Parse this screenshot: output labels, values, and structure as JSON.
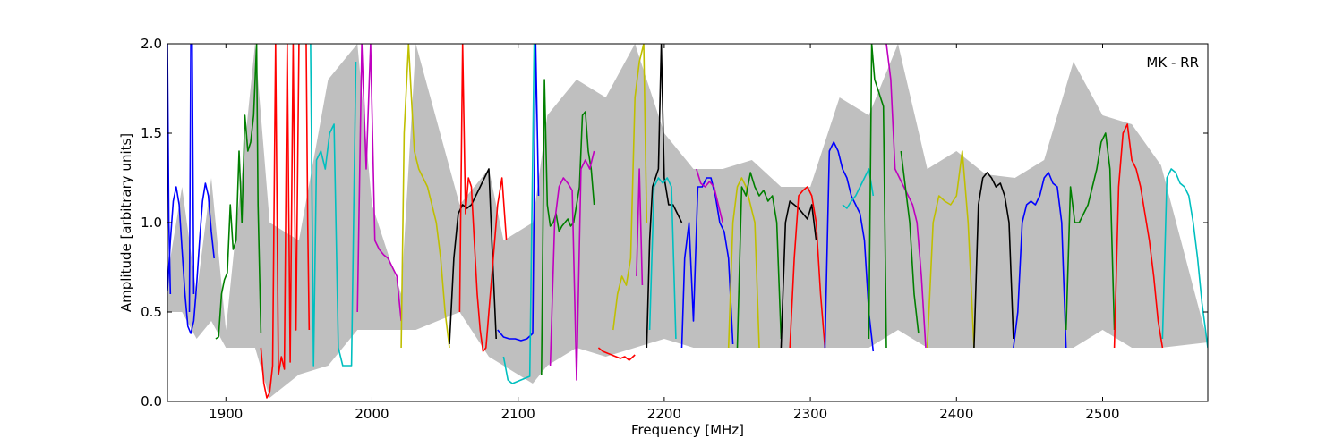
{
  "chart_data": {
    "type": "line",
    "xlabel": "Frequency [MHz]",
    "ylabel": "Amplitude [arbitrary units]",
    "xlim": [
      1860,
      2572
    ],
    "ylim": [
      0.0,
      2.0
    ],
    "x_ticks": [
      1900,
      2000,
      2100,
      2200,
      2300,
      2400,
      2500
    ],
    "x_tick_labels": [
      "1900",
      "2000",
      "2100",
      "2200",
      "2300",
      "2400",
      "2500"
    ],
    "y_ticks": [
      0.0,
      0.5,
      1.0,
      1.5,
      2.0
    ],
    "y_tick_labels": [
      "0.0",
      "0.5",
      "1.0",
      "1.5",
      "2.0"
    ],
    "annotation": "MK - RR",
    "grid": false,
    "colors": {
      "background_band": "#bfbfbf",
      "b": "#0000ff",
      "g": "#007f00",
      "r": "#ff0000",
      "c": "#00bfbf",
      "m": "#bf00bf",
      "y": "#bfbf00",
      "k": "#000000"
    },
    "background_band": {
      "x": [
        1860,
        1870,
        1880,
        1890,
        1900,
        1920,
        1930,
        1950,
        1970,
        1990,
        2000,
        2020,
        2030,
        2060,
        2080,
        2090,
        2110,
        2120,
        2140,
        2160,
        2180,
        2200,
        2220,
        2240,
        2260,
        2280,
        2300,
        2320,
        2340,
        2360,
        2380,
        2400,
        2420,
        2440,
        2460,
        2480,
        2500,
        2520,
        2540,
        2572
      ],
      "upper": [
        0.7,
        1.2,
        0.6,
        1.25,
        0.4,
        2.0,
        1.0,
        0.9,
        1.8,
        2.0,
        1.1,
        0.6,
        2.0,
        1.1,
        1.3,
        0.9,
        1.0,
        1.6,
        1.8,
        1.7,
        2.0,
        1.5,
        1.3,
        1.3,
        1.35,
        1.2,
        1.2,
        1.7,
        1.6,
        2.0,
        1.3,
        1.4,
        1.27,
        1.25,
        1.35,
        1.9,
        1.6,
        1.55,
        1.32,
        0.33
      ],
      "lower": [
        0.5,
        0.5,
        0.35,
        0.45,
        0.3,
        0.3,
        0.02,
        0.15,
        0.2,
        0.4,
        0.4,
        0.4,
        0.4,
        0.5,
        0.25,
        0.2,
        0.1,
        0.2,
        0.3,
        0.25,
        0.3,
        0.35,
        0.3,
        0.3,
        0.3,
        0.3,
        0.3,
        0.3,
        0.3,
        0.4,
        0.3,
        0.3,
        0.3,
        0.3,
        0.3,
        0.3,
        0.4,
        0.3,
        0.3,
        0.33
      ]
    },
    "series": [
      {
        "color": "b",
        "x": [
          1860,
          1862,
          1864,
          1866,
          1868,
          1870,
          1872,
          1874,
          1876,
          1878,
          1880,
          1882,
          1884,
          1886,
          1888,
          1890,
          1892
        ],
        "y": [
          0.62,
          0.9,
          1.12,
          1.2,
          1.1,
          0.85,
          0.6,
          0.42,
          0.38,
          0.45,
          0.65,
          0.9,
          1.12,
          1.22,
          1.15,
          0.95,
          0.8
        ]
      },
      {
        "color": "b",
        "x": [
          1860,
          1861,
          1862
        ],
        "y": [
          2.0,
          1.0,
          0.6
        ]
      },
      {
        "color": "b",
        "x": [
          1875,
          1876,
          1877,
          1878
        ],
        "y": [
          0.5,
          2.0,
          2.0,
          0.6
        ]
      },
      {
        "color": "g",
        "x": [
          1893,
          1895,
          1897,
          1899,
          1901,
          1903,
          1905,
          1907,
          1909,
          1911,
          1913,
          1915,
          1917,
          1919,
          1921,
          1922,
          1924
        ],
        "y": [
          0.35,
          0.36,
          0.6,
          0.68,
          0.72,
          1.1,
          0.85,
          0.9,
          1.4,
          1.0,
          1.6,
          1.4,
          1.45,
          1.6,
          2.0,
          1.1,
          0.38
        ]
      },
      {
        "color": "r",
        "x": [
          1924,
          1926,
          1928,
          1930,
          1932,
          1934,
          1936,
          1938,
          1940,
          1942,
          1944,
          1946,
          1948,
          1950
        ],
        "y": [
          0.3,
          0.1,
          0.02,
          0.05,
          0.2,
          2.0,
          0.15,
          0.25,
          0.18,
          2.0,
          0.22,
          2.0,
          0.4,
          2.0
        ]
      },
      {
        "color": "r",
        "x": [
          1955,
          1956,
          1957
        ],
        "y": [
          2.0,
          1.0,
          0.4
        ]
      },
      {
        "color": "c",
        "x": [
          1958,
          1960,
          1962,
          1965,
          1968,
          1971,
          1974,
          1977,
          1980,
          1983,
          1986,
          1989
        ],
        "y": [
          2.0,
          0.2,
          1.35,
          1.4,
          1.3,
          1.5,
          1.55,
          0.3,
          0.2,
          0.2,
          0.2,
          1.9
        ]
      },
      {
        "color": "m",
        "x": [
          1990,
          1993,
          1996,
          1999,
          2002,
          2005,
          2008,
          2011,
          2014,
          2017,
          2020
        ],
        "y": [
          0.5,
          2.0,
          1.3,
          2.0,
          0.9,
          0.85,
          0.82,
          0.8,
          0.75,
          0.7,
          0.45
        ]
      },
      {
        "color": "y",
        "x": [
          2020,
          2022,
          2025,
          2027,
          2029,
          2032,
          2035,
          2038,
          2041,
          2044,
          2047,
          2050,
          2053
        ],
        "y": [
          0.3,
          1.5,
          2.0,
          1.7,
          1.4,
          1.3,
          1.25,
          1.2,
          1.1,
          1.0,
          0.8,
          0.5,
          0.3
        ]
      },
      {
        "color": "k",
        "x": [
          2053,
          2056,
          2059,
          2062,
          2065,
          2068,
          2071,
          2074,
          2077,
          2080,
          2082,
          2085
        ],
        "y": [
          0.32,
          0.8,
          1.05,
          1.1,
          1.08,
          1.1,
          1.15,
          1.2,
          1.25,
          1.3,
          0.9,
          0.35
        ]
      },
      {
        "color": "r",
        "x": [
          2060,
          2062,
          2064,
          2066,
          2068,
          2070,
          2072,
          2074,
          2076,
          2078,
          2080,
          2083,
          2086,
          2089,
          2092
        ],
        "y": [
          0.5,
          2.0,
          1.05,
          1.25,
          1.2,
          0.9,
          0.6,
          0.4,
          0.28,
          0.3,
          0.5,
          0.8,
          1.1,
          1.25,
          0.9
        ]
      },
      {
        "color": "b",
        "x": [
          2086,
          2090,
          2094,
          2098,
          2102,
          2106,
          2110,
          2112,
          2114
        ],
        "y": [
          0.4,
          0.36,
          0.35,
          0.35,
          0.34,
          0.35,
          0.38,
          2.0,
          1.15
        ]
      },
      {
        "color": "c",
        "x": [
          2090,
          2093,
          2096,
          2099,
          2102,
          2105,
          2108,
          2111
        ],
        "y": [
          0.25,
          0.12,
          0.1,
          0.11,
          0.12,
          0.13,
          0.14,
          2.0
        ]
      },
      {
        "color": "g",
        "x": [
          2116,
          2118,
          2120,
          2122,
          2124,
          2126,
          2128,
          2130,
          2132,
          2134,
          2136,
          2138,
          2140,
          2142,
          2144,
          2146,
          2148,
          2150,
          2152
        ],
        "y": [
          0.15,
          1.8,
          1.1,
          0.98,
          1.0,
          1.05,
          0.95,
          0.98,
          1.0,
          1.02,
          0.98,
          1.0,
          1.1,
          1.2,
          1.6,
          1.62,
          1.4,
          1.3,
          1.1
        ]
      },
      {
        "color": "m",
        "x": [
          2122,
          2125,
          2128,
          2131,
          2134,
          2137,
          2140,
          2143,
          2146,
          2149,
          2152
        ],
        "y": [
          0.2,
          1.0,
          1.2,
          1.25,
          1.22,
          1.18,
          0.12,
          1.3,
          1.35,
          1.3,
          1.4
        ]
      },
      {
        "color": "r",
        "x": [
          2155,
          2158,
          2161,
          2164,
          2167,
          2170,
          2173,
          2176,
          2180
        ],
        "y": [
          0.3,
          0.28,
          0.27,
          0.26,
          0.25,
          0.24,
          0.25,
          0.23,
          0.26
        ]
      },
      {
        "color": "y",
        "x": [
          2165,
          2168,
          2171,
          2174,
          2177,
          2180,
          2183,
          2186,
          2188
        ],
        "y": [
          0.4,
          0.6,
          0.7,
          0.65,
          0.8,
          1.7,
          1.9,
          2.0,
          1.0
        ]
      },
      {
        "color": "m",
        "x": [
          2181,
          2183,
          2185
        ],
        "y": [
          0.7,
          1.3,
          0.65
        ]
      },
      {
        "color": "k",
        "x": [
          2188,
          2190,
          2192,
          2194,
          2196,
          2198,
          2200,
          2203,
          2206,
          2209,
          2212
        ],
        "y": [
          0.3,
          0.9,
          1.2,
          1.25,
          1.3,
          2.0,
          1.25,
          1.1,
          1.1,
          1.05,
          1.0
        ]
      },
      {
        "color": "c",
        "x": [
          2190,
          2193,
          2196,
          2199,
          2202,
          2205,
          2208
        ],
        "y": [
          0.4,
          1.2,
          1.25,
          1.22,
          1.25,
          1.2,
          0.35
        ]
      },
      {
        "color": "b",
        "x": [
          2212,
          2214,
          2217,
          2220,
          2223,
          2226,
          2229,
          2232,
          2235,
          2238,
          2241,
          2244,
          2247
        ],
        "y": [
          0.3,
          0.8,
          1.0,
          0.45,
          1.2,
          1.2,
          1.25,
          1.25,
          1.15,
          1.0,
          0.95,
          0.8,
          0.32
        ]
      },
      {
        "color": "m",
        "x": [
          2222,
          2225,
          2228,
          2231,
          2234,
          2237,
          2240
        ],
        "y": [
          1.3,
          1.22,
          1.2,
          1.23,
          1.2,
          1.1,
          1.0
        ]
      },
      {
        "color": "y",
        "x": [
          2244,
          2247,
          2250,
          2253,
          2256,
          2259,
          2262,
          2265
        ],
        "y": [
          0.3,
          1.0,
          1.2,
          1.25,
          1.2,
          1.1,
          1.0,
          0.3
        ]
      },
      {
        "color": "g",
        "x": [
          2250,
          2253,
          2256,
          2259,
          2262,
          2265,
          2268,
          2271,
          2274,
          2277,
          2280
        ],
        "y": [
          0.3,
          1.2,
          1.15,
          1.28,
          1.2,
          1.15,
          1.18,
          1.12,
          1.15,
          1.0,
          0.35
        ]
      },
      {
        "color": "k",
        "x": [
          2280,
          2283,
          2286,
          2289,
          2292,
          2295,
          2298,
          2301,
          2304
        ],
        "y": [
          0.3,
          1.0,
          1.12,
          1.1,
          1.08,
          1.05,
          1.02,
          1.1,
          0.9
        ]
      },
      {
        "color": "r",
        "x": [
          2286,
          2289,
          2292,
          2295,
          2298,
          2301,
          2304,
          2307,
          2310
        ],
        "y": [
          0.3,
          0.8,
          1.15,
          1.18,
          1.2,
          1.15,
          1.0,
          0.6,
          0.3
        ]
      },
      {
        "color": "b",
        "x": [
          2310,
          2313,
          2316,
          2319,
          2322,
          2325,
          2328,
          2331,
          2334,
          2337,
          2340,
          2343
        ],
        "y": [
          0.3,
          1.4,
          1.45,
          1.4,
          1.3,
          1.25,
          1.15,
          1.1,
          1.05,
          0.9,
          0.5,
          0.28
        ]
      },
      {
        "color": "c",
        "x": [
          2322,
          2325,
          2328,
          2331,
          2334,
          2337,
          2340,
          2343
        ],
        "y": [
          1.1,
          1.08,
          1.12,
          1.15,
          1.2,
          1.25,
          1.3,
          1.15
        ]
      },
      {
        "color": "g",
        "x": [
          2340,
          2342,
          2344,
          2346,
          2348,
          2350,
          2352
        ],
        "y": [
          0.35,
          2.0,
          1.8,
          1.75,
          1.7,
          1.65,
          0.3
        ]
      },
      {
        "color": "m",
        "x": [
          2352,
          2355,
          2358,
          2361,
          2364,
          2367,
          2370,
          2373,
          2376,
          2379
        ],
        "y": [
          2.0,
          1.8,
          1.3,
          1.25,
          1.2,
          1.15,
          1.1,
          1.0,
          0.7,
          0.3
        ]
      },
      {
        "color": "g",
        "x": [
          2362,
          2365,
          2368,
          2371,
          2374
        ],
        "y": [
          1.4,
          1.2,
          1.0,
          0.6,
          0.38
        ]
      },
      {
        "color": "y",
        "x": [
          2380,
          2384,
          2388,
          2392,
          2396,
          2400,
          2404,
          2408,
          2412
        ],
        "y": [
          0.3,
          1.0,
          1.15,
          1.12,
          1.1,
          1.15,
          1.4,
          1.0,
          0.3
        ]
      },
      {
        "color": "k",
        "x": [
          2412,
          2415,
          2418,
          2421,
          2424,
          2427,
          2430,
          2433,
          2436,
          2439
        ],
        "y": [
          0.3,
          1.1,
          1.25,
          1.28,
          1.25,
          1.2,
          1.22,
          1.15,
          1.0,
          0.35
        ]
      },
      {
        "color": "b",
        "x": [
          2439,
          2442,
          2445,
          2448,
          2451,
          2454,
          2457,
          2460,
          2463,
          2466,
          2469,
          2472,
          2475
        ],
        "y": [
          0.3,
          0.5,
          1.0,
          1.1,
          1.12,
          1.1,
          1.15,
          1.25,
          1.28,
          1.22,
          1.2,
          1.0,
          0.3
        ]
      },
      {
        "color": "g",
        "x": [
          2475,
          2478,
          2481,
          2484,
          2487,
          2490,
          2493,
          2496,
          2499,
          2502,
          2505,
          2508
        ],
        "y": [
          0.4,
          1.2,
          1.0,
          1.0,
          1.05,
          1.1,
          1.2,
          1.3,
          1.45,
          1.5,
          1.3,
          0.4
        ]
      },
      {
        "color": "r",
        "x": [
          2508,
          2511,
          2514,
          2517,
          2520,
          2523,
          2526,
          2529,
          2532,
          2535,
          2538,
          2541
        ],
        "y": [
          0.3,
          1.2,
          1.5,
          1.55,
          1.35,
          1.3,
          1.2,
          1.05,
          0.9,
          0.7,
          0.45,
          0.3
        ]
      },
      {
        "color": "c",
        "x": [
          2541,
          2544,
          2547,
          2550,
          2553,
          2556,
          2559,
          2562,
          2565,
          2568,
          2572
        ],
        "y": [
          0.35,
          1.25,
          1.3,
          1.28,
          1.22,
          1.2,
          1.15,
          1.0,
          0.8,
          0.55,
          0.3
        ]
      }
    ]
  }
}
